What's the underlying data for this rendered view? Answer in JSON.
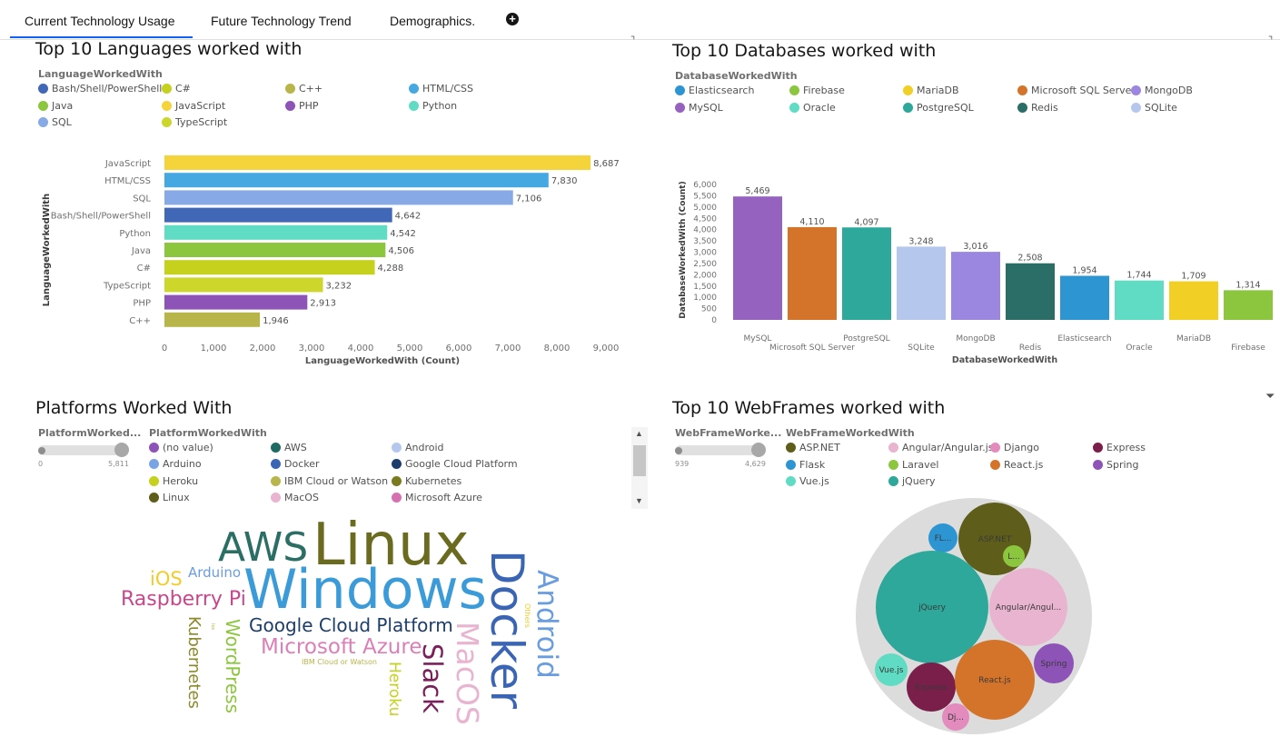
{
  "tabs": [
    {
      "label": "Current Technology Usage",
      "active": true
    },
    {
      "label": "Future Technology Trend",
      "active": false
    },
    {
      "label": "Demographics.",
      "active": false
    }
  ],
  "panels": {
    "languages": {
      "title": "Top 10 Languages worked with",
      "legend_title": "LanguageWorkedWith",
      "legend": [
        {
          "label": "Bash/Shell/PowerShell",
          "color": "#4068b7"
        },
        {
          "label": "C#",
          "color": "#c5d11d"
        },
        {
          "label": "C++",
          "color": "#b8b54a"
        },
        {
          "label": "HTML/CSS",
          "color": "#45a8e0"
        },
        {
          "label": "Java",
          "color": "#8cc63f"
        },
        {
          "label": "JavaScript",
          "color": "#f5d33a"
        },
        {
          "label": "PHP",
          "color": "#8e53b7"
        },
        {
          "label": "Python",
          "color": "#5fdcc3"
        },
        {
          "label": "SQL",
          "color": "#87a9e5"
        },
        {
          "label": "TypeScript",
          "color": "#cdd62a"
        }
      ]
    },
    "databases": {
      "title": "Top 10 Databases worked with",
      "legend_title": "DatabaseWorkedWith",
      "legend": [
        {
          "label": "Elasticsearch",
          "color": "#2e95d3"
        },
        {
          "label": "Firebase",
          "color": "#8cc63f"
        },
        {
          "label": "MariaDB",
          "color": "#f1cf25"
        },
        {
          "label": "Microsoft SQL Server",
          "color": "#d4742b"
        },
        {
          "label": "MongoDB",
          "color": "#9b86e0"
        },
        {
          "label": "MySQL",
          "color": "#9563bf"
        },
        {
          "label": "Oracle",
          "color": "#5fdcc3"
        },
        {
          "label": "PostgreSQL",
          "color": "#2ea89a"
        },
        {
          "label": "Redis",
          "color": "#2b6e68"
        },
        {
          "label": "SQLite",
          "color": "#b6c7ee"
        }
      ]
    },
    "platforms": {
      "title": "Platforms Worked With",
      "slider_label": "PlatformWorked...",
      "slider_min": "0",
      "slider_max": "5,811",
      "legend_title": "PlatformWorkedWith",
      "legend": [
        {
          "label": "(no value)",
          "color": "#8e53b7"
        },
        {
          "label": "AWS",
          "color": "#1f6b64"
        },
        {
          "label": "Android",
          "color": "#b6c7ee"
        },
        {
          "label": "Arduino",
          "color": "#7aa3e5"
        },
        {
          "label": "Docker",
          "color": "#3a64b4"
        },
        {
          "label": "Google Cloud Platform",
          "color": "#1d3d6b"
        },
        {
          "label": "Heroku",
          "color": "#c5d11d"
        },
        {
          "label": "IBM Cloud or Watson",
          "color": "#b8b54a"
        },
        {
          "label": "Kubernetes",
          "color": "#7a7a1f"
        },
        {
          "label": "Linux",
          "color": "#5e5e1a"
        },
        {
          "label": "MacOS",
          "color": "#e8b4cf"
        },
        {
          "label": "Microsoft Azure",
          "color": "#d770b1"
        }
      ],
      "words": [
        {
          "text": "Linux",
          "color": "#6b6b1f"
        },
        {
          "text": "AWS",
          "color": "#2a6e64"
        },
        {
          "text": "Windows",
          "color": "#3b9bd8"
        },
        {
          "text": "iOS",
          "color": "#f3cc2b"
        },
        {
          "text": "Arduino",
          "color": "#6a9de0"
        },
        {
          "text": "Raspberry Pi",
          "color": "#c8478a"
        },
        {
          "text": "Google Cloud Platform",
          "color": "#1d3d6b"
        },
        {
          "text": "Microsoft Azure",
          "color": "#dc7fb7"
        },
        {
          "text": "IBM Cloud or Watson",
          "color": "#b8b54a"
        },
        {
          "text": "Kubernetes",
          "color": "#8a8a2a"
        },
        {
          "text": "WordPress",
          "color": "#8cc63f"
        },
        {
          "text": "Heroku",
          "color": "#c5d11d"
        },
        {
          "text": "Slack",
          "color": "#7a1f5a"
        },
        {
          "text": "MacOS",
          "color": "#e8b4cf"
        },
        {
          "text": "Docker",
          "color": "#3a64b4"
        },
        {
          "text": "Android",
          "color": "#6a9de0"
        },
        {
          "text": "Others",
          "color": "#f3cc2b"
        },
        {
          "text": "Ios",
          "color": "#b8b54a"
        }
      ]
    },
    "webframes": {
      "title": "Top 10 WebFrames worked with",
      "slider_label": "WebFrameWorke...",
      "slider_min": "939",
      "slider_max": "4,629",
      "legend_title": "WebFrameWorkedWith",
      "legend": [
        {
          "label": "ASP.NET",
          "color": "#5e5e1a"
        },
        {
          "label": "Angular/Angular.js",
          "color": "#e8b4cf"
        },
        {
          "label": "Django",
          "color": "#e48bbd"
        },
        {
          "label": "Express",
          "color": "#7a1f4a"
        },
        {
          "label": "Flask",
          "color": "#2e95d3"
        },
        {
          "label": "Laravel",
          "color": "#8cc63f"
        },
        {
          "label": "React.js",
          "color": "#d4742b"
        },
        {
          "label": "Spring",
          "color": "#8e53b7"
        },
        {
          "label": "Vue.js",
          "color": "#5fdcc3"
        },
        {
          "label": "jQuery",
          "color": "#2ea89a"
        }
      ],
      "bubbles": [
        {
          "label": "FL...",
          "color": "#2e95d3"
        },
        {
          "label": "ASP.NET",
          "color": "#5e5e1a"
        },
        {
          "label": "L...",
          "color": "#8cc63f"
        },
        {
          "label": "jQuery",
          "color": "#2ea89a"
        },
        {
          "label": "Angular/Angul...",
          "color": "#e8b4cf"
        },
        {
          "label": "Vue.js",
          "color": "#5fdcc3"
        },
        {
          "label": "Spring",
          "color": "#8e53b7"
        },
        {
          "label": "Express",
          "color": "#7a1f4a"
        },
        {
          "label": "React.js",
          "color": "#d4742b"
        },
        {
          "label": "Dj...",
          "color": "#e48bbd"
        }
      ]
    }
  },
  "chart_data": [
    {
      "type": "bar",
      "orientation": "horizontal",
      "categories": [
        "JavaScript",
        "HTML/CSS",
        "SQL",
        "Bash/Shell/PowerShell",
        "Python",
        "Java",
        "C#",
        "TypeScript",
        "PHP",
        "C++"
      ],
      "values": [
        8687,
        7830,
        7106,
        4642,
        4542,
        4506,
        4288,
        3232,
        2913,
        1946
      ],
      "value_labels": [
        "8,687",
        "7,830",
        "7,106",
        "4,642",
        "4,542",
        "4,506",
        "4,288",
        "3,232",
        "2,913",
        "1,946"
      ],
      "colors": [
        "#f5d33a",
        "#45a8e0",
        "#87a9e5",
        "#4068b7",
        "#5fdcc3",
        "#8cc63f",
        "#c5d11d",
        "#cdd62a",
        "#8e53b7",
        "#b8b54a"
      ],
      "xlabel": "LanguageWorkedWith (Count)",
      "ylabel": "LanguageWorkedWith",
      "xlim": [
        0,
        9000
      ],
      "xticks": [
        "0",
        "1,000",
        "2,000",
        "3,000",
        "4,000",
        "5,000",
        "6,000",
        "7,000",
        "8,000",
        "9,000"
      ]
    },
    {
      "type": "bar",
      "categories": [
        "MySQL",
        "Microsoft SQL Server",
        "PostgreSQL",
        "SQLite",
        "MongoDB",
        "Redis",
        "Elasticsearch",
        "Oracle",
        "MariaDB",
        "Firebase"
      ],
      "values": [
        5469,
        4110,
        4097,
        3248,
        3016,
        2508,
        1954,
        1744,
        1709,
        1314
      ],
      "value_labels": [
        "5,469",
        "4,110",
        "4,097",
        "3,248",
        "3,016",
        "2,508",
        "1,954",
        "1,744",
        "1,709",
        "1,314"
      ],
      "colors": [
        "#9563bf",
        "#d4742b",
        "#2ea89a",
        "#b6c7ee",
        "#9b86e0",
        "#2b6e68",
        "#2e95d3",
        "#5fdcc3",
        "#f1cf25",
        "#8cc63f"
      ],
      "xlabel": "DatabaseWorkedWith",
      "ylabel": "DatabaseWorkedWith (Count)",
      "ylim": [
        0,
        6000
      ],
      "yticks": [
        "0",
        "500",
        "1,000",
        "1,500",
        "2,000",
        "2,500",
        "3,000",
        "3,500",
        "4,000",
        "4,500",
        "5,000",
        "5,500",
        "6,000"
      ]
    }
  ]
}
